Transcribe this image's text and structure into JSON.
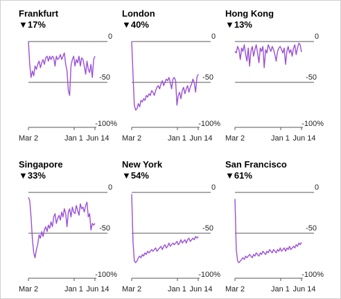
{
  "colors": {
    "line": "#9a4fd6",
    "axis": "#555555",
    "text": "#222222"
  },
  "chart_data": [
    {
      "type": "line",
      "title": "Frankfurt",
      "subtitle": "▼17%",
      "x_ticks": [
        "Mar 2",
        "Jan 1",
        "Jun 14"
      ],
      "y_ticks": [
        "0",
        "-50",
        "-100%"
      ],
      "ylim": [
        -100,
        0
      ],
      "x": [
        0,
        2,
        4,
        6,
        8,
        10,
        12,
        14,
        16,
        18,
        20,
        22,
        24,
        26,
        28,
        30,
        32,
        34,
        36,
        38,
        40,
        42,
        44,
        46,
        48,
        50,
        52,
        54,
        56,
        58,
        60,
        62,
        64,
        66,
        68,
        70,
        72,
        74,
        76,
        78,
        80,
        82,
        84,
        86,
        88,
        90,
        92,
        94,
        96,
        98,
        100
      ],
      "values": [
        0,
        -28,
        -44,
        -36,
        -42,
        -30,
        -34,
        -28,
        -24,
        -32,
        -26,
        -22,
        -28,
        -20,
        -18,
        -24,
        -18,
        -22,
        -18,
        -20,
        -30,
        -18,
        -22,
        -20,
        -16,
        -22,
        -18,
        -14,
        -28,
        -36,
        -60,
        -66,
        -30,
        -22,
        -18,
        -30,
        -22,
        -26,
        -18,
        -30,
        -20,
        -22,
        -30,
        -40,
        -24,
        -34,
        -38,
        -28,
        -44,
        -22,
        -18
      ]
    },
    {
      "type": "line",
      "title": "London",
      "subtitle": "▼40%",
      "x_ticks": [
        "Mar 2",
        "Jan 1",
        "Jun 14"
      ],
      "y_ticks": [
        "0",
        "-50",
        "-100%"
      ],
      "ylim": [
        -100,
        0
      ],
      "x": [
        0,
        2,
        4,
        6,
        8,
        10,
        12,
        14,
        16,
        18,
        20,
        22,
        24,
        26,
        28,
        30,
        32,
        34,
        36,
        38,
        40,
        42,
        44,
        46,
        48,
        50,
        52,
        54,
        56,
        58,
        60,
        62,
        64,
        66,
        68,
        70,
        72,
        74,
        76,
        78,
        80,
        82,
        84,
        86,
        88,
        90,
        92,
        94,
        96,
        98,
        100
      ],
      "values": [
        0,
        -40,
        -78,
        -84,
        -82,
        -76,
        -80,
        -72,
        -74,
        -70,
        -72,
        -66,
        -68,
        -64,
        -66,
        -60,
        -62,
        -66,
        -60,
        -56,
        -54,
        -58,
        -52,
        -48,
        -54,
        -50,
        -46,
        -48,
        -44,
        -50,
        -58,
        -46,
        -44,
        -48,
        -78,
        -66,
        -62,
        -70,
        -60,
        -56,
        -64,
        -58,
        -54,
        -62,
        -56,
        -52,
        -46,
        -50,
        -62,
        -44,
        -40
      ]
    },
    {
      "type": "line",
      "title": "Hong Kong",
      "subtitle": "▼13%",
      "x_ticks": [
        "Mar 2",
        "Jan 1",
        "Jun 14"
      ],
      "y_ticks": [
        "0",
        "-50",
        "-100%"
      ],
      "ylim": [
        -100,
        0
      ],
      "x": [
        0,
        2,
        4,
        6,
        8,
        10,
        12,
        14,
        16,
        18,
        20,
        22,
        24,
        26,
        28,
        30,
        32,
        34,
        36,
        38,
        40,
        42,
        44,
        46,
        48,
        50,
        52,
        54,
        56,
        58,
        60,
        62,
        64,
        66,
        68,
        70,
        72,
        74,
        76,
        78,
        80,
        82,
        84,
        86,
        88,
        90,
        92,
        94,
        96,
        98,
        100
      ],
      "values": [
        -12,
        -14,
        -6,
        -10,
        -22,
        -8,
        -12,
        -4,
        -16,
        -24,
        -8,
        -30,
        -12,
        -6,
        -18,
        -10,
        -4,
        -14,
        -26,
        -8,
        -12,
        -6,
        -32,
        -10,
        -14,
        -4,
        -8,
        -12,
        -6,
        -10,
        -16,
        -24,
        -12,
        -8,
        -6,
        -10,
        -14,
        -8,
        -28,
        -12,
        -6,
        -14,
        -10,
        -18,
        -8,
        -4,
        -16,
        -8,
        -2,
        -4,
        -13
      ]
    },
    {
      "type": "line",
      "title": "Singapore",
      "subtitle": "▼33%",
      "x_ticks": [
        "Mar 2",
        "Jan 1",
        "Jun 14"
      ],
      "y_ticks": [
        "0",
        "-50",
        "-100%"
      ],
      "ylim": [
        -100,
        0
      ],
      "x": [
        0,
        2,
        4,
        6,
        8,
        10,
        12,
        14,
        16,
        18,
        20,
        22,
        24,
        26,
        28,
        30,
        32,
        34,
        36,
        38,
        40,
        42,
        44,
        46,
        48,
        50,
        52,
        54,
        56,
        58,
        60,
        62,
        64,
        66,
        68,
        70,
        72,
        74,
        76,
        78,
        80,
        82,
        84,
        86,
        88,
        90,
        92,
        94,
        96,
        98,
        100
      ],
      "values": [
        -6,
        -10,
        -30,
        -58,
        -74,
        -80,
        -70,
        -64,
        -52,
        -56,
        -48,
        -54,
        -46,
        -42,
        -48,
        -40,
        -44,
        -36,
        -42,
        -30,
        -26,
        -38,
        -32,
        -28,
        -34,
        -24,
        -30,
        -20,
        -26,
        -42,
        -24,
        -20,
        -30,
        -18,
        -24,
        -26,
        -16,
        -22,
        -28,
        -14,
        -20,
        -18,
        -24,
        -16,
        -12,
        -30,
        -26,
        -46,
        -38,
        -40,
        -38
      ]
    },
    {
      "type": "line",
      "title": "New York",
      "subtitle": "▼54%",
      "x_ticks": [
        "Mar 2",
        "Jan 1",
        "Jun 14"
      ],
      "y_ticks": [
        "0",
        "-50",
        "-100%"
      ],
      "ylim": [
        -100,
        0
      ],
      "x": [
        0,
        2,
        4,
        6,
        8,
        10,
        12,
        14,
        16,
        18,
        20,
        22,
        24,
        26,
        28,
        30,
        32,
        34,
        36,
        38,
        40,
        42,
        44,
        46,
        48,
        50,
        52,
        54,
        56,
        58,
        60,
        62,
        64,
        66,
        68,
        70,
        72,
        74,
        76,
        78,
        80,
        82,
        84,
        86,
        88,
        90,
        92,
        94,
        96,
        98,
        100
      ],
      "values": [
        -2,
        -60,
        -84,
        -86,
        -84,
        -80,
        -78,
        -80,
        -76,
        -78,
        -74,
        -76,
        -72,
        -74,
        -72,
        -70,
        -72,
        -70,
        -68,
        -72,
        -70,
        -68,
        -66,
        -70,
        -66,
        -64,
        -68,
        -66,
        -62,
        -66,
        -64,
        -62,
        -64,
        -62,
        -60,
        -64,
        -62,
        -58,
        -62,
        -60,
        -58,
        -62,
        -58,
        -56,
        -60,
        -58,
        -56,
        -58,
        -54,
        -56,
        -54
      ]
    },
    {
      "type": "line",
      "title": "San Francisco",
      "subtitle": "▼61%",
      "x_ticks": [
        "Mar 2",
        "Jan 1",
        "Jun 14"
      ],
      "y_ticks": [
        "0",
        "-50",
        "-100%"
      ],
      "ylim": [
        -100,
        0
      ],
      "x": [
        0,
        2,
        4,
        6,
        8,
        10,
        12,
        14,
        16,
        18,
        20,
        22,
        24,
        26,
        28,
        30,
        32,
        34,
        36,
        38,
        40,
        42,
        44,
        46,
        48,
        50,
        52,
        54,
        56,
        58,
        60,
        62,
        64,
        66,
        68,
        70,
        72,
        74,
        76,
        78,
        80,
        82,
        84,
        86,
        88,
        90,
        92,
        94,
        96,
        98,
        100
      ],
      "values": [
        -8,
        -70,
        -84,
        -86,
        -84,
        -82,
        -80,
        -82,
        -78,
        -80,
        -78,
        -76,
        -78,
        -80,
        -76,
        -78,
        -74,
        -76,
        -78,
        -74,
        -76,
        -72,
        -74,
        -76,
        -72,
        -74,
        -70,
        -72,
        -74,
        -70,
        -72,
        -74,
        -70,
        -72,
        -68,
        -72,
        -70,
        -68,
        -72,
        -68,
        -70,
        -66,
        -70,
        -68,
        -66,
        -68,
        -64,
        -66,
        -62,
        -64,
        -61
      ]
    }
  ]
}
